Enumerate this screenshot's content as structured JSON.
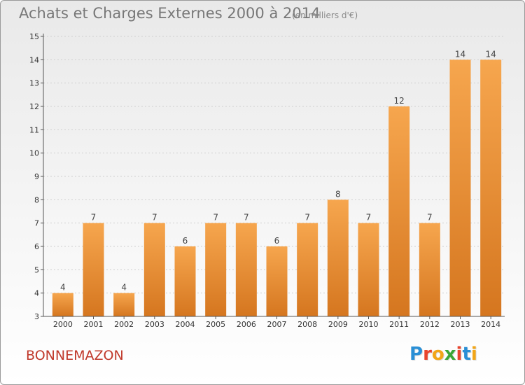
{
  "header": {
    "title": "Achats et Charges Externes 2000 à 2014",
    "unit_note": "(en milliers d'€)"
  },
  "footer": {
    "place": "BONNEMAZON",
    "brand_letters": [
      "P",
      "r",
      "o",
      "x",
      "i",
      "t",
      "i"
    ],
    "brand_colors": [
      "#2a8fd6",
      "#e8442d",
      "#f2a618",
      "#3aa635",
      "#e8442d",
      "#2a8fd6",
      "#f2a618"
    ]
  },
  "colors": {
    "bar_top": "#f6a64e",
    "bar_bottom": "#d5761f",
    "axis": "#555555",
    "grid": "#cfcfcf",
    "tick_text": "#333333",
    "value_text": "#444444"
  },
  "chart_data": {
    "type": "bar",
    "title": "Achats et Charges Externes 2000 à 2014",
    "subtitle": "(en milliers d'€)",
    "xlabel": "",
    "ylabel": "",
    "categories": [
      "2000",
      "2001",
      "2002",
      "2003",
      "2004",
      "2005",
      "2006",
      "2007",
      "2008",
      "2009",
      "2010",
      "2011",
      "2012",
      "2013",
      "2014"
    ],
    "values": [
      4,
      7,
      4,
      7,
      6,
      7,
      7,
      6,
      7,
      8,
      7,
      12,
      7,
      14,
      14
    ],
    "ylim": [
      3,
      15
    ],
    "yticks": [
      3,
      4,
      5,
      6,
      7,
      8,
      9,
      10,
      11,
      12,
      13,
      14,
      15
    ],
    "grid": true,
    "legend": "none"
  }
}
